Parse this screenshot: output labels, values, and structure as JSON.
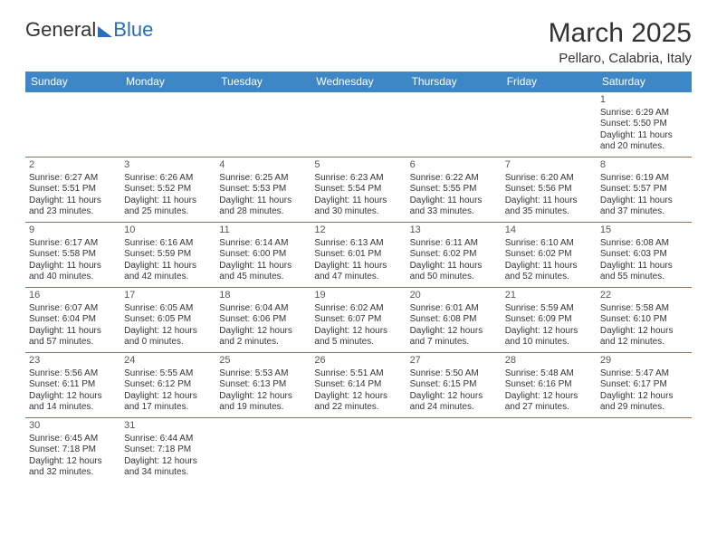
{
  "logo": {
    "general": "General",
    "blue": "Blue"
  },
  "title": "March 2025",
  "location": "Pellaro, Calabria, Italy",
  "colors": {
    "header_bg": "#3d87c7",
    "header_text": "#ffffff",
    "border": "#3d87c7",
    "text": "#333333",
    "logo_blue": "#2a6db8"
  },
  "days_of_week": [
    "Sunday",
    "Monday",
    "Tuesday",
    "Wednesday",
    "Thursday",
    "Friday",
    "Saturday"
  ],
  "weeks": [
    [
      null,
      null,
      null,
      null,
      null,
      null,
      {
        "n": "1",
        "sr": "Sunrise: 6:29 AM",
        "ss": "Sunset: 5:50 PM",
        "d1": "Daylight: 11 hours",
        "d2": "and 20 minutes."
      }
    ],
    [
      {
        "n": "2",
        "sr": "Sunrise: 6:27 AM",
        "ss": "Sunset: 5:51 PM",
        "d1": "Daylight: 11 hours",
        "d2": "and 23 minutes."
      },
      {
        "n": "3",
        "sr": "Sunrise: 6:26 AM",
        "ss": "Sunset: 5:52 PM",
        "d1": "Daylight: 11 hours",
        "d2": "and 25 minutes."
      },
      {
        "n": "4",
        "sr": "Sunrise: 6:25 AM",
        "ss": "Sunset: 5:53 PM",
        "d1": "Daylight: 11 hours",
        "d2": "and 28 minutes."
      },
      {
        "n": "5",
        "sr": "Sunrise: 6:23 AM",
        "ss": "Sunset: 5:54 PM",
        "d1": "Daylight: 11 hours",
        "d2": "and 30 minutes."
      },
      {
        "n": "6",
        "sr": "Sunrise: 6:22 AM",
        "ss": "Sunset: 5:55 PM",
        "d1": "Daylight: 11 hours",
        "d2": "and 33 minutes."
      },
      {
        "n": "7",
        "sr": "Sunrise: 6:20 AM",
        "ss": "Sunset: 5:56 PM",
        "d1": "Daylight: 11 hours",
        "d2": "and 35 minutes."
      },
      {
        "n": "8",
        "sr": "Sunrise: 6:19 AM",
        "ss": "Sunset: 5:57 PM",
        "d1": "Daylight: 11 hours",
        "d2": "and 37 minutes."
      }
    ],
    [
      {
        "n": "9",
        "sr": "Sunrise: 6:17 AM",
        "ss": "Sunset: 5:58 PM",
        "d1": "Daylight: 11 hours",
        "d2": "and 40 minutes."
      },
      {
        "n": "10",
        "sr": "Sunrise: 6:16 AM",
        "ss": "Sunset: 5:59 PM",
        "d1": "Daylight: 11 hours",
        "d2": "and 42 minutes."
      },
      {
        "n": "11",
        "sr": "Sunrise: 6:14 AM",
        "ss": "Sunset: 6:00 PM",
        "d1": "Daylight: 11 hours",
        "d2": "and 45 minutes."
      },
      {
        "n": "12",
        "sr": "Sunrise: 6:13 AM",
        "ss": "Sunset: 6:01 PM",
        "d1": "Daylight: 11 hours",
        "d2": "and 47 minutes."
      },
      {
        "n": "13",
        "sr": "Sunrise: 6:11 AM",
        "ss": "Sunset: 6:02 PM",
        "d1": "Daylight: 11 hours",
        "d2": "and 50 minutes."
      },
      {
        "n": "14",
        "sr": "Sunrise: 6:10 AM",
        "ss": "Sunset: 6:02 PM",
        "d1": "Daylight: 11 hours",
        "d2": "and 52 minutes."
      },
      {
        "n": "15",
        "sr": "Sunrise: 6:08 AM",
        "ss": "Sunset: 6:03 PM",
        "d1": "Daylight: 11 hours",
        "d2": "and 55 minutes."
      }
    ],
    [
      {
        "n": "16",
        "sr": "Sunrise: 6:07 AM",
        "ss": "Sunset: 6:04 PM",
        "d1": "Daylight: 11 hours",
        "d2": "and 57 minutes."
      },
      {
        "n": "17",
        "sr": "Sunrise: 6:05 AM",
        "ss": "Sunset: 6:05 PM",
        "d1": "Daylight: 12 hours",
        "d2": "and 0 minutes."
      },
      {
        "n": "18",
        "sr": "Sunrise: 6:04 AM",
        "ss": "Sunset: 6:06 PM",
        "d1": "Daylight: 12 hours",
        "d2": "and 2 minutes."
      },
      {
        "n": "19",
        "sr": "Sunrise: 6:02 AM",
        "ss": "Sunset: 6:07 PM",
        "d1": "Daylight: 12 hours",
        "d2": "and 5 minutes."
      },
      {
        "n": "20",
        "sr": "Sunrise: 6:01 AM",
        "ss": "Sunset: 6:08 PM",
        "d1": "Daylight: 12 hours",
        "d2": "and 7 minutes."
      },
      {
        "n": "21",
        "sr": "Sunrise: 5:59 AM",
        "ss": "Sunset: 6:09 PM",
        "d1": "Daylight: 12 hours",
        "d2": "and 10 minutes."
      },
      {
        "n": "22",
        "sr": "Sunrise: 5:58 AM",
        "ss": "Sunset: 6:10 PM",
        "d1": "Daylight: 12 hours",
        "d2": "and 12 minutes."
      }
    ],
    [
      {
        "n": "23",
        "sr": "Sunrise: 5:56 AM",
        "ss": "Sunset: 6:11 PM",
        "d1": "Daylight: 12 hours",
        "d2": "and 14 minutes."
      },
      {
        "n": "24",
        "sr": "Sunrise: 5:55 AM",
        "ss": "Sunset: 6:12 PM",
        "d1": "Daylight: 12 hours",
        "d2": "and 17 minutes."
      },
      {
        "n": "25",
        "sr": "Sunrise: 5:53 AM",
        "ss": "Sunset: 6:13 PM",
        "d1": "Daylight: 12 hours",
        "d2": "and 19 minutes."
      },
      {
        "n": "26",
        "sr": "Sunrise: 5:51 AM",
        "ss": "Sunset: 6:14 PM",
        "d1": "Daylight: 12 hours",
        "d2": "and 22 minutes."
      },
      {
        "n": "27",
        "sr": "Sunrise: 5:50 AM",
        "ss": "Sunset: 6:15 PM",
        "d1": "Daylight: 12 hours",
        "d2": "and 24 minutes."
      },
      {
        "n": "28",
        "sr": "Sunrise: 5:48 AM",
        "ss": "Sunset: 6:16 PM",
        "d1": "Daylight: 12 hours",
        "d2": "and 27 minutes."
      },
      {
        "n": "29",
        "sr": "Sunrise: 5:47 AM",
        "ss": "Sunset: 6:17 PM",
        "d1": "Daylight: 12 hours",
        "d2": "and 29 minutes."
      }
    ],
    [
      {
        "n": "30",
        "sr": "Sunrise: 6:45 AM",
        "ss": "Sunset: 7:18 PM",
        "d1": "Daylight: 12 hours",
        "d2": "and 32 minutes."
      },
      {
        "n": "31",
        "sr": "Sunrise: 6:44 AM",
        "ss": "Sunset: 7:18 PM",
        "d1": "Daylight: 12 hours",
        "d2": "and 34 minutes."
      },
      null,
      null,
      null,
      null,
      null
    ]
  ]
}
